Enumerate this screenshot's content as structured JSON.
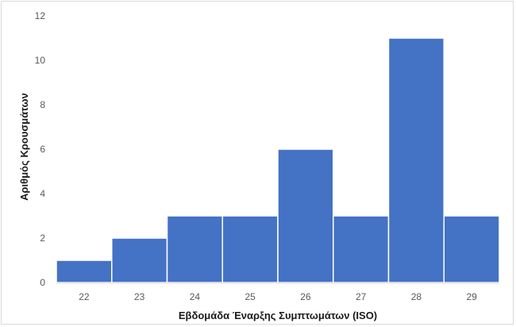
{
  "chart_data": {
    "type": "bar",
    "categories": [
      "22",
      "23",
      "24",
      "25",
      "26",
      "27",
      "28",
      "29"
    ],
    "values": [
      1,
      2,
      3,
      3,
      6,
      3,
      11,
      3
    ],
    "title": "",
    "xlabel": "Εβδομάδα Έναρξης Συμπτωμάτων (ISO)",
    "ylabel": "Αριθμός Κρουσμάτων",
    "ylim": [
      0,
      12
    ],
    "yticks": [
      0,
      2,
      4,
      6,
      8,
      10,
      12
    ],
    "grid": false,
    "legend": "none",
    "bar_color": "#4472c4",
    "bar_edge_color": "#ffffff"
  }
}
